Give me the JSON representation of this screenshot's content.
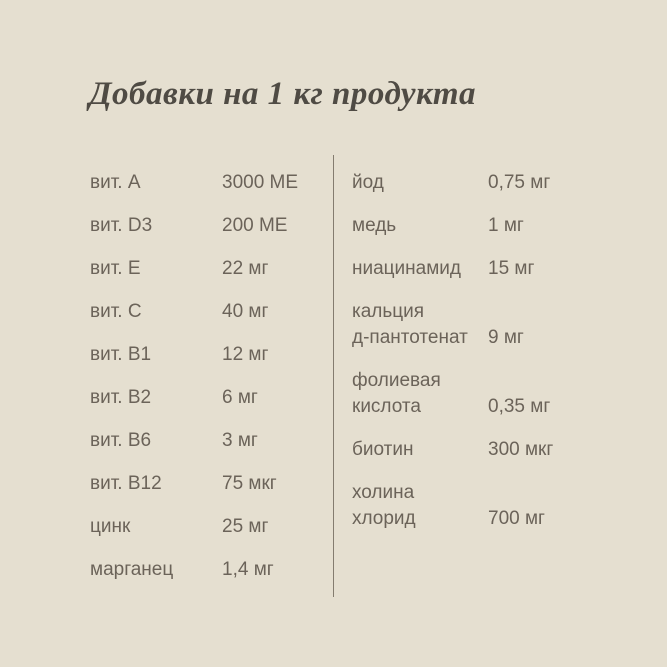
{
  "page": {
    "colors": {
      "background": "#e5dfd0",
      "text": "#6b6359",
      "title": "#4f4b44",
      "divider": "#847c6f"
    }
  },
  "title": "Добавки на 1 кг продукта",
  "table": {
    "left_column": [
      {
        "label": "вит. A",
        "value": "3000 МЕ"
      },
      {
        "label": "вит. D3",
        "value": "200 МЕ"
      },
      {
        "label": "вит. E",
        "value": "22 мг"
      },
      {
        "label": "вит. C",
        "value": "40 мг"
      },
      {
        "label": "вит. B1",
        "value": "12 мг"
      },
      {
        "label": "вит. B2",
        "value": "6 мг"
      },
      {
        "label": "вит. B6",
        "value": "3 мг"
      },
      {
        "label": "вит. B12",
        "value": "75 мкг"
      },
      {
        "label": "цинк",
        "value": "25 мг"
      },
      {
        "label": "марганец",
        "value": "1,4 мг"
      }
    ],
    "right_column": [
      {
        "label": "йод",
        "value": "0,75 мг"
      },
      {
        "label": "медь",
        "value": "1 мг"
      },
      {
        "label": "ниацинамид",
        "value": "15 мг"
      },
      {
        "label": "кальция\nд-пантотенат",
        "value": "9 мг"
      },
      {
        "label": "фолиевая\nкислота",
        "value": "0,35 мг"
      },
      {
        "label": "биотин",
        "value": "300 мкг"
      },
      {
        "label": "холина\nхлорид",
        "value": "700 мг"
      }
    ]
  }
}
